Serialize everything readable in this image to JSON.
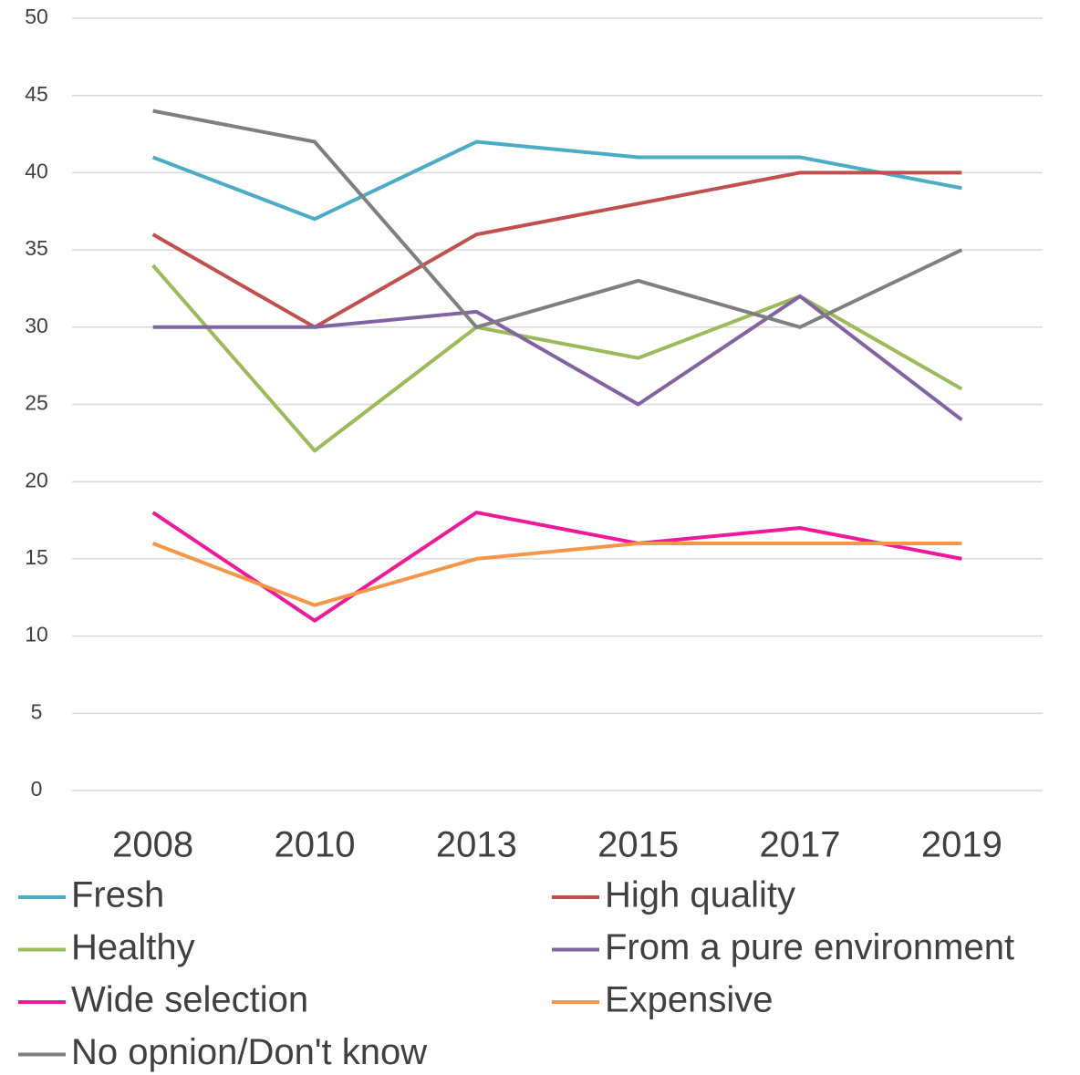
{
  "chart_data": {
    "type": "line",
    "categories": [
      "2008",
      "2010",
      "2013",
      "2015",
      "2017",
      "2019"
    ],
    "series": [
      {
        "name": "Fresh",
        "color": "#4bacc6",
        "values": [
          41,
          37,
          42,
          41,
          41,
          39
        ]
      },
      {
        "name": "High quality",
        "color": "#c0504d",
        "values": [
          36,
          30,
          36,
          38,
          40,
          40
        ]
      },
      {
        "name": "Healthy",
        "color": "#9bbb59",
        "values": [
          34,
          22,
          30,
          28,
          32,
          26
        ]
      },
      {
        "name": "From a pure environment",
        "color": "#8064a2",
        "values": [
          30,
          30,
          31,
          25,
          32,
          24
        ]
      },
      {
        "name": "Wide selection",
        "color": "#f0189a",
        "values": [
          18,
          11,
          18,
          16,
          17,
          15
        ]
      },
      {
        "name": "Expensive",
        "color": "#f79646",
        "values": [
          16,
          12,
          15,
          16,
          16,
          16
        ]
      },
      {
        "name": "No opnion/Don't know",
        "color": "#7f7f7f",
        "values": [
          44,
          42,
          30,
          33,
          30,
          35
        ]
      }
    ],
    "ylim": [
      0,
      50
    ],
    "yticks": [
      0,
      5,
      10,
      15,
      20,
      25,
      30,
      35,
      40,
      45,
      50
    ],
    "grid": true,
    "legend": "bottom"
  }
}
